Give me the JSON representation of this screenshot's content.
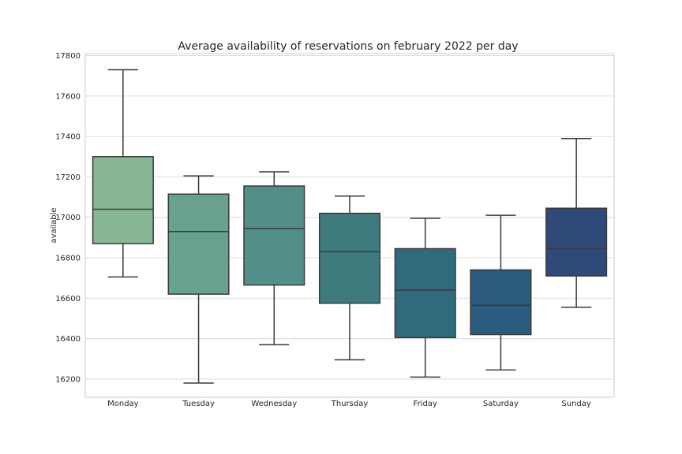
{
  "chart_data": {
    "type": "box",
    "title": "Average availability of reservations on february 2022 per day",
    "xlabel": "",
    "ylabel": "available",
    "ylim": [
      16110,
      17810
    ],
    "yticks": [
      16200,
      16400,
      16600,
      16800,
      17000,
      17200,
      17400,
      17600,
      17800
    ],
    "grid": true,
    "categories": [
      "Monday",
      "Tuesday",
      "Wednesday",
      "Thursday",
      "Friday",
      "Saturday",
      "Sunday"
    ],
    "boxes": [
      {
        "category": "Monday",
        "min": 16705,
        "q1": 16870,
        "median": 17040,
        "q3": 17300,
        "max": 17730,
        "color": "#87b795"
      },
      {
        "category": "Tuesday",
        "min": 16180,
        "q1": 16620,
        "median": 16930,
        "q3": 17115,
        "max": 17205,
        "color": "#68a18e"
      },
      {
        "category": "Wednesday",
        "min": 16370,
        "q1": 16665,
        "median": 16945,
        "q3": 17155,
        "max": 17225,
        "color": "#538f88"
      },
      {
        "category": "Thursday",
        "min": 16295,
        "q1": 16575,
        "median": 16830,
        "q3": 17020,
        "max": 17105,
        "color": "#3e7b7f"
      },
      {
        "category": "Friday",
        "min": 16210,
        "q1": 16405,
        "median": 16640,
        "q3": 16845,
        "max": 16995,
        "color": "#2f6a7d"
      },
      {
        "category": "Saturday",
        "min": 16245,
        "q1": 16420,
        "median": 16565,
        "q3": 16740,
        "max": 17010,
        "color": "#2b5b7d"
      },
      {
        "category": "Sunday",
        "min": 16555,
        "q1": 16710,
        "median": 16845,
        "q3": 17045,
        "max": 17390,
        "color": "#2f4a78"
      }
    ]
  }
}
